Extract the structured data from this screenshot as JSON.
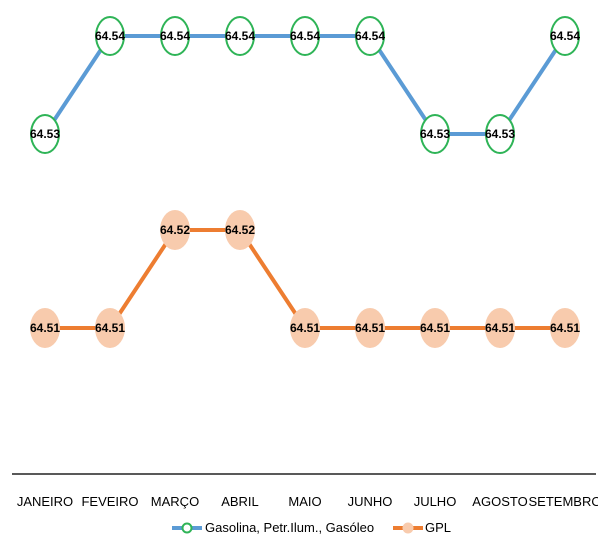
{
  "chart_data": {
    "type": "line",
    "categories": [
      "JANEIRO",
      "FEVEIRO",
      "MARÇO",
      "ABRIL",
      "MAIO",
      "JUNHO",
      "JULHO",
      "AGOSTO",
      "SETEMBRO"
    ],
    "series": [
      {
        "name": "Gasolina, Petr.Ilum., Gasóleo",
        "values": [
          64.53,
          64.54,
          64.54,
          64.54,
          64.54,
          64.54,
          64.53,
          64.53,
          64.54
        ],
        "labels": [
          "64.53",
          "64.54",
          "64.54",
          "64.54",
          "64.54",
          "64.54",
          "64.53",
          "64.53",
          "64.54"
        ],
        "line_color": "#5b9bd5",
        "marker_fill": "#ffffff",
        "marker_stroke": "#2fb457"
      },
      {
        "name": "GPL",
        "values": [
          64.51,
          64.51,
          64.52,
          64.52,
          64.51,
          64.51,
          64.51,
          64.51,
          64.51
        ],
        "labels": [
          "64.51",
          "64.51",
          "64.52",
          "64.52",
          "64.51",
          "64.51",
          "64.51",
          "64.51",
          "64.51"
        ],
        "line_color": "#ed7d31",
        "marker_fill": "#f8cbad",
        "marker_stroke": "#f8cbad"
      }
    ],
    "legend_position": "bottom",
    "grid": false
  }
}
